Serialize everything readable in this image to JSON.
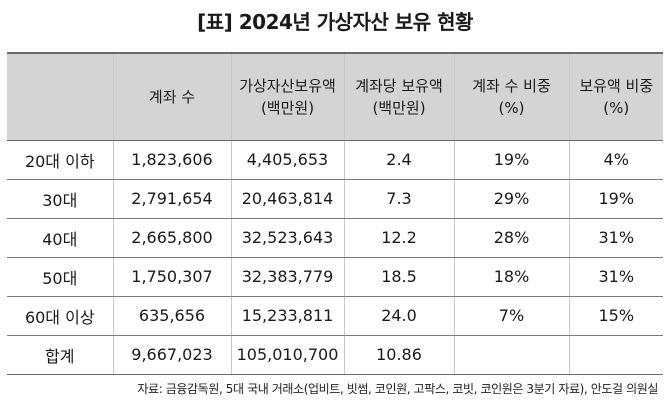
{
  "title": "[표] 2024년 가상자산 보유 현황",
  "headers": {
    "blank": "",
    "accounts": "계좌 수",
    "holdings_line1": "가상자산보유액",
    "holdings_line2": "(백만원)",
    "per_account_line1": "계좌당 보유액",
    "per_account_line2": "(백만원)",
    "account_share_line1": "계좌 수 비중",
    "account_share_line2": "(%)",
    "holdings_share_line1": "보유액 비중",
    "holdings_share_line2": "(%)"
  },
  "rows": [
    {
      "age": "20대 이하",
      "accounts": "1,823,606",
      "holdings": "4,405,653",
      "per_account": "2.4",
      "account_share": "19%",
      "holdings_share": "4%"
    },
    {
      "age": "30대",
      "accounts": "2,791,654",
      "holdings": "20,463,814",
      "per_account": "7.3",
      "account_share": "29%",
      "holdings_share": "19%"
    },
    {
      "age": "40대",
      "accounts": "2,665,800",
      "holdings": "32,523,643",
      "per_account": "12.2",
      "account_share": "28%",
      "holdings_share": "31%"
    },
    {
      "age": "50대",
      "accounts": "1,750,307",
      "holdings": "32,383,779",
      "per_account": "18.5",
      "account_share": "18%",
      "holdings_share": "31%"
    },
    {
      "age": "60대 이상",
      "accounts": "635,656",
      "holdings": "15,233,811",
      "per_account": "24.0",
      "account_share": "7%",
      "holdings_share": "15%"
    },
    {
      "age": "합계",
      "accounts": "9,667,023",
      "holdings": "105,010,700",
      "per_account": "10.86",
      "account_share": "",
      "holdings_share": ""
    }
  ],
  "source": "자료: 금융감독원, 5대 국내 거래소(업비트, 빗썸, 코인원, 고팍스, 코빗, 코인원은 3분기 자료), 안도걸 의원실",
  "colors": {
    "header_bg": "#d4d4d4",
    "rule": "#6a6a6a"
  }
}
